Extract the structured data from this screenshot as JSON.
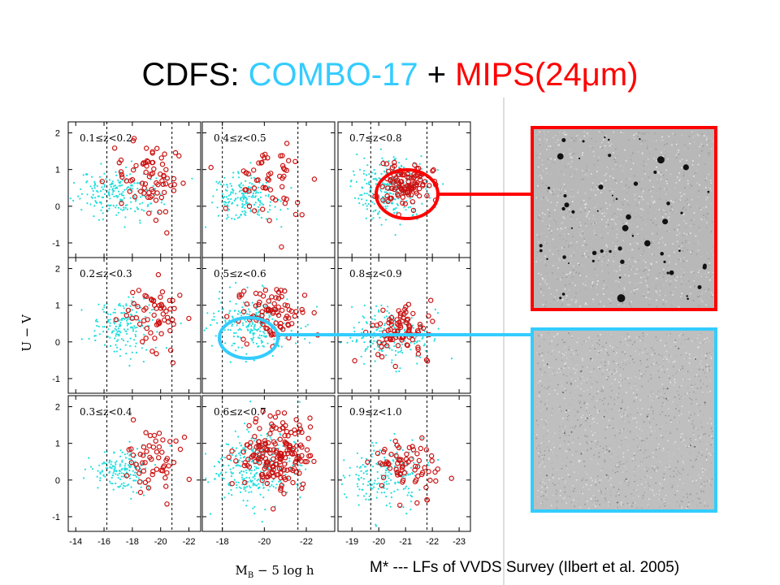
{
  "title": {
    "prefix": "CDFS: ",
    "combo": "COMBO-17",
    "plus": " + ",
    "mips": "MIPS(24μm)"
  },
  "colors": {
    "combo": "#33ccff",
    "mips": "#ff0000",
    "combo_points": "#22dddd",
    "mips_points": "#cc1111"
  },
  "chart_data": {
    "type": "scatter",
    "ylabel": "U − V",
    "xlabel_main": "M",
    "xlabel_sub": "B",
    "xlabel_rest": " − 5 log h",
    "ylim": [
      -1.4,
      2.3
    ],
    "y_ticks": [
      "2",
      "1",
      "0",
      "-1"
    ],
    "x_tick_sets": [
      [
        "-14",
        "-16",
        "-18",
        "-20",
        "-22"
      ],
      [
        "-18",
        "-20",
        "-22"
      ],
      [
        "-19",
        "-20",
        "-21",
        "-22",
        "-23"
      ]
    ],
    "columns": [
      {
        "xlim": [
          -13.7,
          -22.6
        ],
        "mstar": [
          -16.2,
          -20.8
        ]
      },
      {
        "xlim": [
          -17.2,
          -23.2
        ],
        "mstar": [
          -18.0,
          -21.6
        ]
      },
      {
        "xlim": [
          -18.6,
          -23.3
        ],
        "mstar": [
          -19.7,
          -21.8
        ]
      }
    ],
    "panels": [
      {
        "label": "0.1≤z<0.2",
        "col": 0,
        "row": 0,
        "blue": {
          "cx": -17.0,
          "cy": 0.35,
          "sx": 1.5,
          "sy": 0.35,
          "n": 220
        },
        "red": {
          "cx": -19.2,
          "cy": 0.8,
          "sx": 1.2,
          "sy": 0.45,
          "n": 75
        }
      },
      {
        "label": "0.4≤z<0.5",
        "col": 1,
        "row": 0,
        "blue": {
          "cx": -19.0,
          "cy": 0.2,
          "sx": 0.8,
          "sy": 0.3,
          "n": 200
        },
        "red": {
          "cx": -20.3,
          "cy": 0.7,
          "sx": 0.9,
          "sy": 0.45,
          "n": 55
        }
      },
      {
        "label": "0.7≤z<0.8",
        "col": 2,
        "row": 0,
        "blue": {
          "cx": -20.5,
          "cy": 0.5,
          "sx": 0.65,
          "sy": 0.45,
          "n": 280
        },
        "red": {
          "cx": -21.0,
          "cy": 0.55,
          "sx": 0.5,
          "sy": 0.3,
          "n": 110
        }
      },
      {
        "label": "0.2≤z<0.3",
        "col": 0,
        "row": 1,
        "blue": {
          "cx": -17.3,
          "cy": 0.45,
          "sx": 1.1,
          "sy": 0.35,
          "n": 180
        },
        "red": {
          "cx": -19.6,
          "cy": 0.75,
          "sx": 1.0,
          "sy": 0.45,
          "n": 60
        }
      },
      {
        "label": "0.5≤z<0.6",
        "col": 1,
        "row": 1,
        "blue": {
          "cx": -19.5,
          "cy": 0.45,
          "sx": 1.0,
          "sy": 0.4,
          "n": 250
        },
        "red": {
          "cx": -20.5,
          "cy": 0.8,
          "sx": 0.8,
          "sy": 0.4,
          "n": 85
        }
      },
      {
        "label": "0.8≤z<0.9",
        "col": 2,
        "row": 1,
        "blue": {
          "cx": -20.4,
          "cy": 0.15,
          "sx": 0.7,
          "sy": 0.4,
          "n": 190
        },
        "red": {
          "cx": -20.8,
          "cy": 0.35,
          "sx": 0.6,
          "sy": 0.4,
          "n": 85
        }
      },
      {
        "label": "0.3≤z<0.4",
        "col": 0,
        "row": 2,
        "blue": {
          "cx": -17.3,
          "cy": 0.3,
          "sx": 1.0,
          "sy": 0.3,
          "n": 170
        },
        "red": {
          "cx": -19.5,
          "cy": 0.55,
          "sx": 0.9,
          "sy": 0.4,
          "n": 55
        }
      },
      {
        "label": "0.6≤z<0.7",
        "col": 1,
        "row": 2,
        "blue": {
          "cx": -19.7,
          "cy": 0.35,
          "sx": 1.0,
          "sy": 0.5,
          "n": 330
        },
        "red": {
          "cx": -20.5,
          "cy": 0.75,
          "sx": 0.85,
          "sy": 0.5,
          "n": 180
        }
      },
      {
        "label": "0.9≤z<1.0",
        "col": 2,
        "row": 2,
        "blue": {
          "cx": -20.3,
          "cy": 0.15,
          "sx": 0.65,
          "sy": 0.45,
          "n": 200
        },
        "red": {
          "cx": -21.0,
          "cy": 0.4,
          "sx": 0.6,
          "sy": 0.4,
          "n": 70
        }
      }
    ]
  },
  "caption": "M* --- LFs of VVDS Survey (Ilbert et al. 2005)"
}
